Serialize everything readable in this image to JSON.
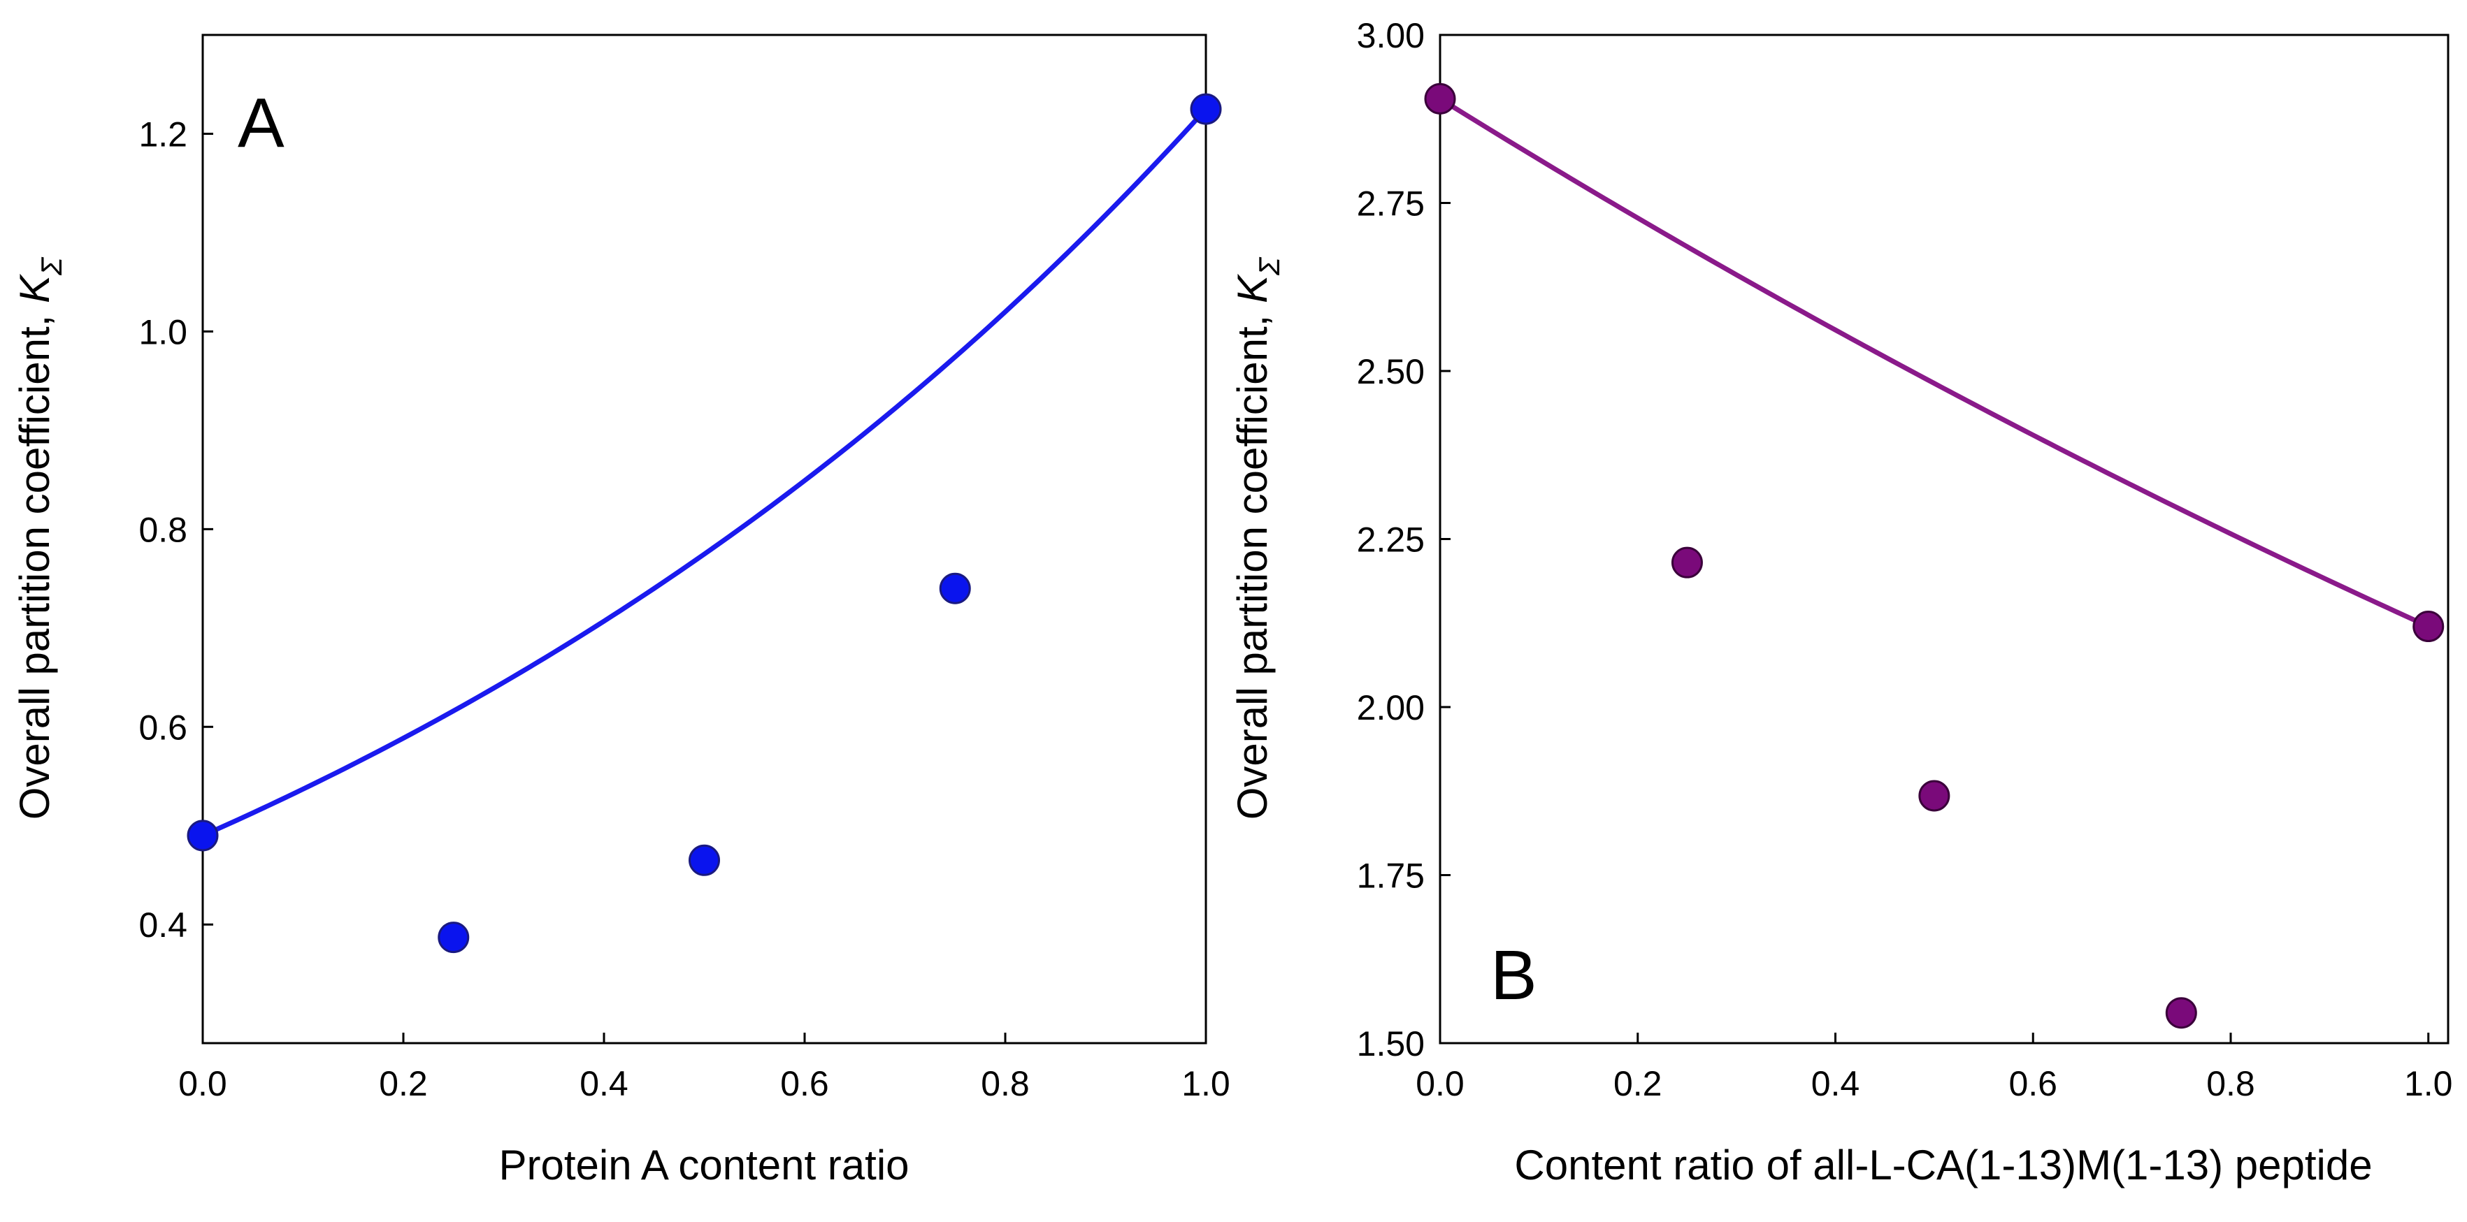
{
  "chart_data": [
    {
      "type": "scatter",
      "panel_label": "A",
      "xlabel": "Protein A content ratio",
      "ylabel_main": "Overall partition coefficient, ",
      "ylabel_symbol": "K",
      "ylabel_subscript": "Σ",
      "xlim": [
        0.0,
        1.0
      ],
      "ylim": [
        0.28,
        1.3
      ],
      "xticks": [
        "0.0",
        "0.2",
        "0.4",
        "0.6",
        "0.8",
        "1.0"
      ],
      "xtick_values": [
        0.0,
        0.2,
        0.4,
        0.6,
        0.8,
        1.0
      ],
      "yticks": [
        "0.4",
        "0.6",
        "0.8",
        "1.0",
        "1.2"
      ],
      "ytick_values": [
        0.4,
        0.6,
        0.8,
        1.0,
        1.2
      ],
      "marker_color": "#0a14ee",
      "marker_edge": "#1a1a80",
      "curve_color": "#1a1aee",
      "points": [
        {
          "x": 0.0,
          "y": 0.49
        },
        {
          "x": 0.25,
          "y": 0.387
        },
        {
          "x": 0.5,
          "y": 0.465
        },
        {
          "x": 0.75,
          "y": 0.74
        },
        {
          "x": 1.0,
          "y": 1.225
        }
      ],
      "curve": {
        "x": [
          0.0,
          1.0
        ],
        "y_start": 0.49,
        "y_end": 1.225,
        "shape": "exponential"
      }
    },
    {
      "type": "scatter",
      "panel_label": "B",
      "xlabel": "Content ratio of all-L-CA(1-13)M(1-13) peptide",
      "ylabel_main": "Overall partition coefficient, ",
      "ylabel_symbol": "K",
      "ylabel_subscript": "Σ",
      "xlim": [
        0.0,
        1.02
      ],
      "ylim": [
        1.5,
        3.0
      ],
      "xticks": [
        "0.0",
        "0.2",
        "0.4",
        "0.6",
        "0.8",
        "1.0"
      ],
      "xtick_values": [
        0.0,
        0.2,
        0.4,
        0.6,
        0.8,
        1.0
      ],
      "yticks": [
        "1.50",
        "1.75",
        "2.00",
        "2.25",
        "2.50",
        "2.75",
        "3.00"
      ],
      "ytick_values": [
        1.5,
        1.75,
        2.0,
        2.25,
        2.5,
        2.75,
        3.0
      ],
      "marker_color": "#7a0a7a",
      "marker_edge": "#3a003a",
      "curve_color": "#8a1a8a",
      "points": [
        {
          "x": 0.0,
          "y": 2.905
        },
        {
          "x": 0.25,
          "y": 2.215
        },
        {
          "x": 0.5,
          "y": 1.868
        },
        {
          "x": 0.75,
          "y": 1.545
        },
        {
          "x": 1.0,
          "y": 2.12
        }
      ],
      "curve": {
        "x": [
          0.0,
          1.0
        ],
        "y_start": 2.905,
        "y_end": 2.12,
        "shape": "exponential"
      }
    }
  ]
}
